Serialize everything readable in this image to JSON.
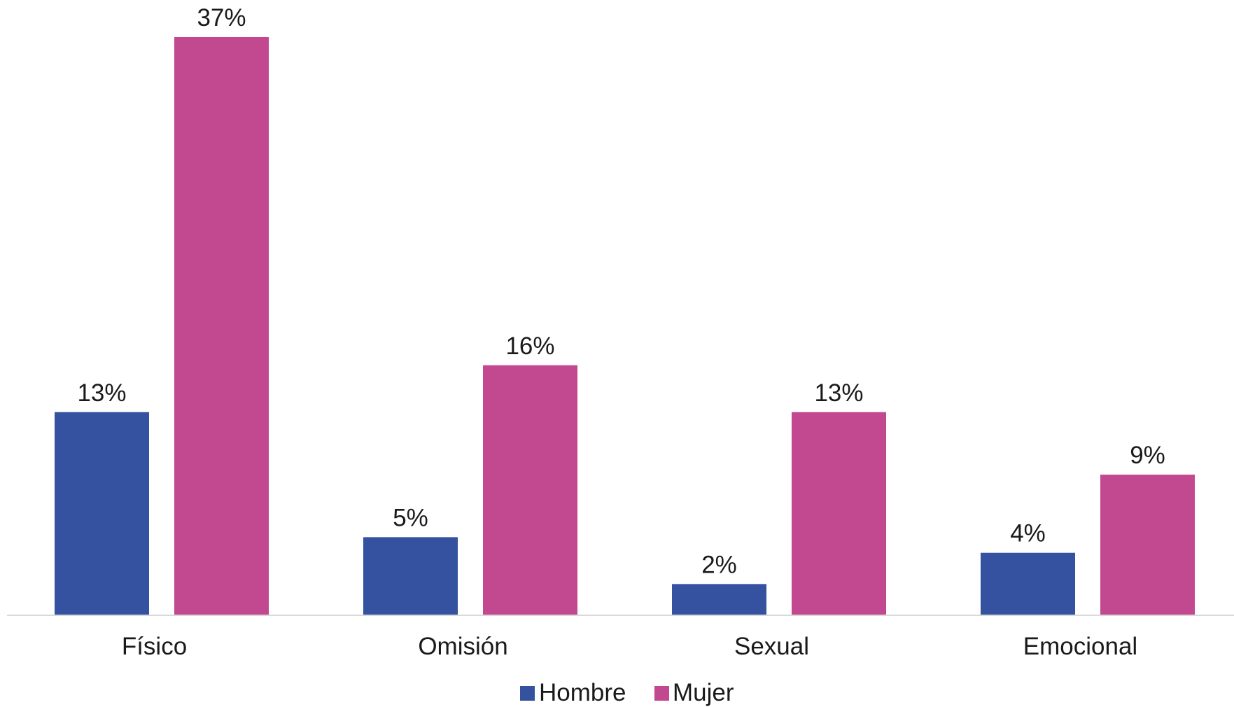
{
  "chart_data": {
    "type": "bar",
    "categories": [
      "Físico",
      "Omisión",
      "Sexual",
      "Emocional"
    ],
    "series": [
      {
        "name": "Hombre",
        "color": "#34529f",
        "values": [
          13,
          5,
          2,
          4
        ],
        "labels": [
          "13%",
          "5%",
          "2%",
          "4%"
        ]
      },
      {
        "name": "Mujer",
        "color": "#c2498f",
        "values": [
          37,
          16,
          13,
          9
        ],
        "labels": [
          "37%",
          "16%",
          "13%",
          "9%"
        ]
      }
    ],
    "title": "",
    "xlabel": "",
    "ylabel": "",
    "ylim": [
      0,
      37
    ],
    "grid": false,
    "legend": "bottom",
    "axis_color": "#d9d9d9"
  }
}
